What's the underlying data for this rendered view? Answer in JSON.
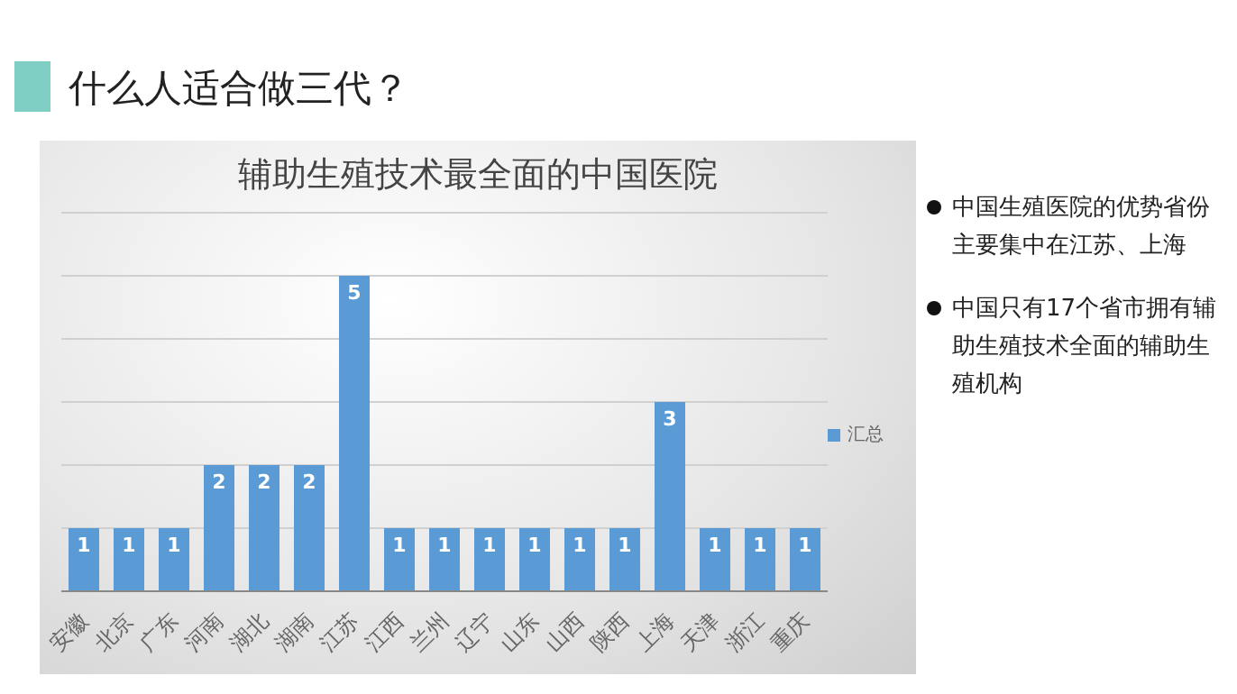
{
  "chart_data": {
    "type": "bar",
    "title": "什么人适合做三代？",
    "subtitle": "辅助生殖技术最全面的中国医院",
    "categories": [
      "安徽",
      "北京",
      "广东",
      "河南",
      "湖北",
      "湖南",
      "江苏",
      "江西",
      "兰州",
      "辽宁",
      "山东",
      "山西",
      "陕西",
      "上海",
      "天津",
      "浙江",
      "重庆"
    ],
    "series": [
      {
        "name": "汇总",
        "color": "#5b9bd5",
        "values": [
          1,
          1,
          1,
          2,
          2,
          2,
          5,
          1,
          1,
          1,
          1,
          1,
          1,
          3,
          1,
          1,
          1
        ]
      }
    ],
    "ylim": [
      0,
      6
    ],
    "yticks": [
      {
        "value": 0,
        "label": null
      },
      {
        "value": 1,
        "label": null
      },
      {
        "value": 2,
        "label": null
      },
      {
        "value": 3,
        "label": null
      },
      {
        "value": 4,
        "label": null
      },
      {
        "value": 5,
        "label": null
      },
      {
        "value": 6,
        "label": null
      }
    ],
    "tick_labels": "x",
    "grid": "y",
    "legend": "right",
    "data_labels": true,
    "annotations": [
      "中国生殖医院的优势省份主要集中在江苏、上海",
      "中国只有17个省市拥有辅助生殖技术全面的辅助生殖机构"
    ]
  }
}
